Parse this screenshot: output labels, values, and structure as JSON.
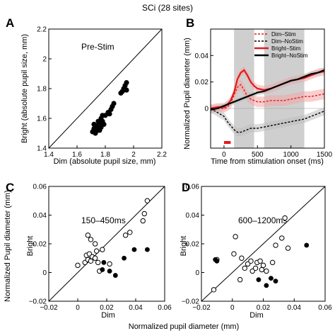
{
  "figure": {
    "title": "SCi (28 sites)"
  },
  "colors": {
    "red": "#e41a1c",
    "black": "#000000",
    "shade_red": "#f4a6a6",
    "shade_black": "#bdbdbd",
    "window": "#cfcfcf"
  },
  "chart_data": [
    {
      "id": "A",
      "panel_label": "A",
      "type": "scatter",
      "annotation": "Pre-Stim",
      "xlabel": "Dim (absolute pupil size, mm)",
      "ylabel": "Bright (absolute pupil size, mm)",
      "xlim": [
        1.4,
        2.2
      ],
      "ylim": [
        1.4,
        2.2
      ],
      "xticks": [
        "1.4",
        "1.6",
        "1.8",
        "2",
        "2.2"
      ],
      "yticks": [
        "1.4",
        "1.6",
        "1.8",
        "2",
        "2.2"
      ],
      "unity_line": true,
      "marker": "filled",
      "points": [
        [
          1.71,
          1.51
        ],
        [
          1.72,
          1.53
        ],
        [
          1.73,
          1.5
        ],
        [
          1.74,
          1.55
        ],
        [
          1.75,
          1.52
        ],
        [
          1.76,
          1.57
        ],
        [
          1.77,
          1.54
        ],
        [
          1.78,
          1.58
        ],
        [
          1.75,
          1.58
        ],
        [
          1.74,
          1.53
        ],
        [
          1.72,
          1.56
        ],
        [
          1.77,
          1.6
        ],
        [
          1.76,
          1.52
        ],
        [
          1.73,
          1.54
        ],
        [
          1.79,
          1.56
        ],
        [
          1.78,
          1.62
        ],
        [
          1.8,
          1.62
        ],
        [
          1.82,
          1.64
        ],
        [
          1.84,
          1.66
        ],
        [
          1.85,
          1.68
        ],
        [
          1.83,
          1.63
        ],
        [
          1.86,
          1.7
        ],
        [
          1.92,
          1.78
        ],
        [
          1.93,
          1.8
        ],
        [
          1.94,
          1.82
        ],
        [
          1.95,
          1.79
        ],
        [
          1.95,
          1.84
        ],
        [
          1.91,
          1.77
        ]
      ]
    },
    {
      "id": "B",
      "panel_label": "B",
      "type": "line",
      "xlabel": "Time from stimulation onset (ms)",
      "ylabel": "Normalized Pupil diameter (mm)",
      "xlim": [
        -200,
        1500
      ],
      "ylim": [
        -0.03,
        0.06
      ],
      "xticks": [
        "0",
        "500",
        "1000",
        "1500"
      ],
      "yticks": [
        "0",
        "0.02",
        "0.04"
      ],
      "shaded_windows_ms": [
        [
          150,
          450
        ],
        [
          600,
          1200
        ]
      ],
      "stim_bar_ms": [
        0,
        100
      ],
      "legend_position": "top-right",
      "x": [
        -200,
        -100,
        0,
        50,
        100,
        150,
        200,
        250,
        300,
        350,
        400,
        450,
        500,
        600,
        700,
        800,
        900,
        1000,
        1100,
        1200,
        1300,
        1400,
        1500
      ],
      "series": [
        {
          "name": "Dim–Stim",
          "color": "#e41a1c",
          "style": "dashed",
          "values": [
            -0.001,
            0.0,
            0.0,
            0.001,
            0.004,
            0.01,
            0.016,
            0.018,
            0.014,
            0.009,
            0.007,
            0.006,
            0.005,
            0.005,
            0.006,
            0.006,
            0.006,
            0.007,
            0.008,
            0.009,
            0.009,
            0.01,
            0.011
          ],
          "error": [
            0.003,
            0.003,
            0.003,
            0.003,
            0.004,
            0.004,
            0.004,
            0.004,
            0.004,
            0.004,
            0.004,
            0.004,
            0.004,
            0.004,
            0.004,
            0.004,
            0.004,
            0.004,
            0.004,
            0.004,
            0.004,
            0.004,
            0.004
          ]
        },
        {
          "name": "Dim–NoStim",
          "color": "#000000",
          "style": "dashed",
          "values": [
            0.0,
            -0.003,
            -0.006,
            -0.01,
            -0.013,
            -0.016,
            -0.018,
            -0.018,
            -0.017,
            -0.016,
            -0.015,
            -0.015,
            -0.015,
            -0.014,
            -0.013,
            -0.012,
            -0.011,
            -0.01,
            -0.009,
            -0.008,
            -0.006,
            -0.004,
            -0.002
          ],
          "error": [
            0.003,
            0.003,
            0.003,
            0.003,
            0.003,
            0.003,
            0.003,
            0.003,
            0.003,
            0.003,
            0.003,
            0.003,
            0.003,
            0.003,
            0.003,
            0.003,
            0.003,
            0.003,
            0.003,
            0.003,
            0.003,
            0.003,
            0.003
          ]
        },
        {
          "name": "Bright–Stim",
          "color": "#e41a1c",
          "style": "solid",
          "values": [
            0.0,
            0.001,
            0.001,
            0.003,
            0.006,
            0.012,
            0.022,
            0.027,
            0.029,
            0.025,
            0.02,
            0.017,
            0.015,
            0.014,
            0.015,
            0.017,
            0.019,
            0.021,
            0.022,
            0.023,
            0.025,
            0.027,
            0.028
          ],
          "error": [
            0.003,
            0.003,
            0.003,
            0.003,
            0.003,
            0.003,
            0.003,
            0.003,
            0.003,
            0.003,
            0.003,
            0.003,
            0.003,
            0.003,
            0.003,
            0.003,
            0.003,
            0.003,
            0.003,
            0.003,
            0.003,
            0.003,
            0.003
          ]
        },
        {
          "name": "Bright–NoStim",
          "color": "#000000",
          "style": "solid",
          "values": [
            -0.001,
            0.0,
            0.002,
            0.003,
            0.004,
            0.005,
            0.006,
            0.007,
            0.008,
            0.009,
            0.01,
            0.011,
            0.012,
            0.013,
            0.015,
            0.017,
            0.019,
            0.021,
            0.022,
            0.024,
            0.026,
            0.027,
            0.029
          ],
          "error": [
            0.002,
            0.002,
            0.002,
            0.002,
            0.002,
            0.002,
            0.002,
            0.002,
            0.002,
            0.002,
            0.002,
            0.002,
            0.002,
            0.002,
            0.002,
            0.002,
            0.002,
            0.002,
            0.002,
            0.002,
            0.002,
            0.002,
            0.002
          ]
        }
      ]
    },
    {
      "id": "C",
      "panel_label": "C",
      "type": "scatter",
      "annotation": "150–450ms",
      "xlabel": "Dim",
      "ylabel": "Bright",
      "xlim": [
        -0.02,
        0.06
      ],
      "ylim": [
        -0.02,
        0.06
      ],
      "xticks": [
        "−0.02",
        "0",
        "0.02",
        "0.04",
        "0.06"
      ],
      "yticks": [
        "−0.02",
        "0",
        "0.02",
        "0.04",
        "0.06"
      ],
      "unity_line": true,
      "open_points": [
        [
          0.0,
          0.005
        ],
        [
          0.005,
          0.007
        ],
        [
          0.007,
          0.009
        ],
        [
          0.006,
          0.012
        ],
        [
          0.008,
          0.013
        ],
        [
          0.009,
          0.008
        ],
        [
          0.01,
          0.011
        ],
        [
          0.012,
          0.01
        ],
        [
          0.013,
          0.015
        ],
        [
          0.014,
          0.007
        ],
        [
          0.015,
          0.001
        ],
        [
          0.007,
          0.026
        ],
        [
          0.009,
          0.023
        ],
        [
          0.012,
          0.02
        ],
        [
          0.017,
          0.016
        ],
        [
          0.022,
          0.006
        ],
        [
          0.033,
          0.026
        ],
        [
          0.036,
          0.028
        ],
        [
          0.046,
          0.041
        ],
        [
          0.045,
          0.036
        ],
        [
          0.048,
          0.05
        ]
      ],
      "filled_points": [
        [
          0.017,
          0.002
        ],
        [
          0.018,
          0.007
        ],
        [
          0.022,
          0.001
        ],
        [
          0.026,
          -0.002
        ],
        [
          0.032,
          0.01
        ],
        [
          0.039,
          0.016
        ],
        [
          0.048,
          0.016
        ]
      ]
    },
    {
      "id": "D",
      "panel_label": "D",
      "type": "scatter",
      "annotation": "600–1200ms",
      "xlabel": "Dim",
      "ylabel": "Bright",
      "xlim": [
        -0.02,
        0.06
      ],
      "ylim": [
        -0.02,
        0.06
      ],
      "xticks": [
        "−0.02",
        "0",
        "0.02",
        "0.04",
        "0.06"
      ],
      "yticks": [
        "−0.02",
        "0",
        "0.02",
        "0.04",
        "0.06"
      ],
      "unity_line": true,
      "open_points": [
        [
          -0.012,
          -0.012
        ],
        [
          -0.01,
          0.009
        ],
        [
          0.001,
          0.013
        ],
        [
          0.002,
          0.025
        ],
        [
          0.006,
          0.01
        ],
        [
          0.008,
          0.003
        ],
        [
          0.01,
          0.006
        ],
        [
          0.012,
          0.008
        ],
        [
          0.013,
          0.001
        ],
        [
          0.015,
          0.003
        ],
        [
          0.016,
          0.007
        ],
        [
          0.018,
          0.008
        ],
        [
          0.019,
          0.002
        ],
        [
          0.02,
          0.005
        ],
        [
          0.022,
          0.001
        ],
        [
          0.026,
          0.007
        ],
        [
          0.028,
          0.019
        ],
        [
          0.032,
          0.024
        ],
        [
          0.034,
          0.038
        ],
        [
          0.036,
          0.017
        ],
        [
          0.005,
          -0.005
        ]
      ],
      "filled_points": [
        [
          -0.011,
          0.009
        ],
        [
          -0.01,
          0.008
        ],
        [
          0.017,
          -0.005
        ],
        [
          0.022,
          -0.009
        ],
        [
          0.025,
          -0.004
        ],
        [
          0.028,
          -0.006
        ],
        [
          0.048,
          0.019
        ]
      ]
    }
  ],
  "shared": {
    "bottom_xlabel": "Normalized pupil diameter (mm)",
    "left_ylabel": "Normalized Pupil diameter (mm)"
  }
}
